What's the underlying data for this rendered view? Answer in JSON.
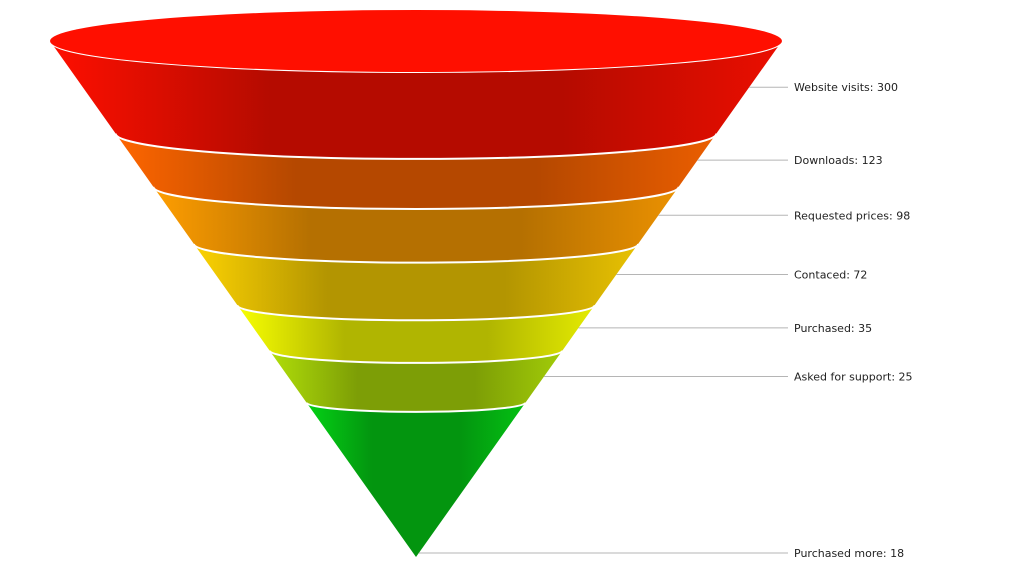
{
  "chart_data": {
    "type": "funnel",
    "title": "",
    "label_separator": ": ",
    "categories": [
      "Website visits",
      "Downloads",
      "Requested prices",
      "Contaced",
      "Purchased",
      "Asked for support",
      "Purchased more"
    ],
    "values": [
      300,
      123,
      98,
      72,
      35,
      25,
      18
    ],
    "colors": [
      "#ff0f00",
      "#ff6600",
      "#ff9e01",
      "#fcd202",
      "#f8ff01",
      "#b0de09",
      "#04d215"
    ],
    "legend": "none",
    "grid": false
  }
}
